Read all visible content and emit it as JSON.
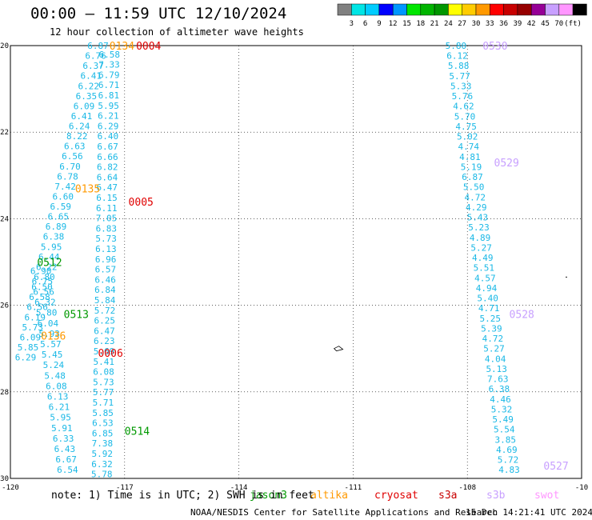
{
  "header": {
    "title": "00:00 – 11:59 UTC 12/10/2024",
    "subtitle": "12 hour collection of altimeter wave heights"
  },
  "colorbar": {
    "colors": [
      "#808080",
      "#00e5e5",
      "#00ccff",
      "#0000ff",
      "#0096ff",
      "#00e600",
      "#00b400",
      "#009600",
      "#ffff00",
      "#ffcc00",
      "#ff9900",
      "#ff0000",
      "#c80000",
      "#960000",
      "#960096",
      "#c8a0ff",
      "#ff96ff",
      "#000000"
    ],
    "labels": [
      "3",
      "6",
      "9",
      "12",
      "15",
      "18",
      "21",
      "24",
      "27",
      "30",
      "33",
      "36",
      "39",
      "42",
      "45",
      "70"
    ],
    "unit": "(ft)"
  },
  "map": {
    "lon_ticks": [
      "-120",
      "-117",
      "-114",
      "-111",
      "-108",
      "-10"
    ],
    "lat_ticks": [
      "-20",
      "-22",
      "-24",
      "-26",
      "-28",
      "-30"
    ],
    "lon_range": [
      -120,
      -105
    ],
    "lat_range": [
      -30,
      -20
    ],
    "grid": true
  },
  "swh_color": "#1ab8e6",
  "passes": [
    {
      "id": "0004",
      "color": "#e00000",
      "lon": -116.7,
      "lat": -20.0
    },
    {
      "id": "0134",
      "color": "#ff9900",
      "lon": -117.4,
      "lat": -20.0
    },
    {
      "id": "0135",
      "color": "#ff9900",
      "lon": -118.3,
      "lat": -23.3
    },
    {
      "id": "0005",
      "color": "#e00000",
      "lon": -116.9,
      "lat": -23.6
    },
    {
      "id": "0512",
      "color": "#009900",
      "lon": -119.3,
      "lat": -25.0
    },
    {
      "id": "0513",
      "color": "#009900",
      "lon": -118.6,
      "lat": -26.2
    },
    {
      "id": "0136",
      "color": "#ff9900",
      "lon": -119.2,
      "lat": -26.7
    },
    {
      "id": "0006",
      "color": "#e00000",
      "lon": -117.7,
      "lat": -27.1
    },
    {
      "id": "0514",
      "color": "#009900",
      "lon": -117.0,
      "lat": -28.9
    },
    {
      "id": "0530",
      "color": "#c8a0ff",
      "lon": -107.6,
      "lat": -20.0
    },
    {
      "id": "0529",
      "color": "#c8a0ff",
      "lon": -107.3,
      "lat": -22.7
    },
    {
      "id": "0528",
      "color": "#c8a0ff",
      "lon": -106.9,
      "lat": -26.2
    },
    {
      "id": "0527",
      "color": "#c8a0ff",
      "lon": -106.0,
      "lat": -29.7
    }
  ],
  "tracks": [
    {
      "values": [
        "6.87",
        "6.76",
        "6.37",
        "6.41",
        "6.22",
        "6.35",
        "6.09",
        "6.41",
        "6.24",
        "8.22",
        "6.63",
        "6.56",
        "6.70",
        "6.78",
        "7.42",
        "6.60",
        "6.59",
        "6.65",
        "6.89",
        "6.38",
        "5.95",
        "6.44",
        "6.22",
        "6.80",
        "6.50",
        "6.58",
        "6.56",
        "6.19",
        "5.73",
        "6.09",
        "5.85",
        "6.29"
      ],
      "lon_start": -117.7,
      "lon_end": -119.6,
      "lat_start": -20.0,
      "lat_end": -27.2
    },
    {
      "values": [
        "6.58",
        "7.33",
        "6.79",
        "6.71",
        "6.81",
        "5.95",
        "6.21",
        "6.29",
        "6.40",
        "6.67",
        "6.66",
        "6.82",
        "6.64",
        "6.47",
        "6.15",
        "6.11",
        "7.05",
        "6.83",
        "5.73",
        "6.13",
        "6.96",
        "6.57",
        "6.46",
        "6.84",
        "5.84",
        "5.72",
        "6.25",
        "6.47",
        "6.23",
        "5.69",
        "5.41",
        "6.08",
        "5.73",
        "5.77",
        "5.71",
        "5.85",
        "6.53",
        "6.85",
        "7.38",
        "5.92",
        "6.32",
        "5.78"
      ],
      "lon_start": -117.4,
      "lon_end": -117.6,
      "lat_start": -20.2,
      "lat_end": -29.9
    },
    {
      "values": [
        "6.90",
        "6.75",
        "6.56",
        "6.32",
        "5.80",
        "6.04",
        "5.93",
        "5.57",
        "5.45",
        "5.24",
        "5.48",
        "6.08",
        "6.13",
        "6.21",
        "5.95",
        "5.91",
        "6.33",
        "6.43",
        "6.67",
        "6.54"
      ],
      "lon_start": -119.2,
      "lon_end": -118.5,
      "lat_start": -25.2,
      "lat_end": -29.8
    },
    {
      "values": [
        "5.80",
        "6.12",
        "5.88",
        "5.77",
        "5.33",
        "5.76",
        "4.62",
        "5.70",
        "4.75",
        "5.02",
        "4.74",
        "4.81",
        "5.19",
        "6.87",
        "5.50",
        "4.72",
        "4.29",
        "5.43",
        "5.23",
        "4.89",
        "5.27",
        "4.49",
        "5.51",
        "4.57",
        "4.94",
        "5.40",
        "4.71",
        "5.25",
        "5.39",
        "4.72",
        "5.27",
        "4.04",
        "5.13",
        "7.63",
        "6.38",
        "4.46",
        "5.32",
        "5.49",
        "5.54",
        "3.85",
        "4.69",
        "5.72",
        "4.83"
      ],
      "lon_start": -108.3,
      "lon_end": -106.9,
      "lat_start": -20.0,
      "lat_end": -29.8
    }
  ],
  "footer": {
    "note": "note: 1) Time is in UTC; 2) SWH is in feet",
    "credit": "NOAA/NESDIS Center for Satellite Applications and Research",
    "timestamp": "15 Dec 14:21:41 UTC 2024",
    "legend": [
      {
        "label": "jason3",
        "color": "#009900"
      },
      {
        "label": "altika",
        "color": "#ff9900"
      },
      {
        "label": "cryosat",
        "color": "#e00000"
      },
      {
        "label": "s3a",
        "color": "#c80000"
      },
      {
        "label": "s3b",
        "color": "#c8a0ff"
      },
      {
        "label": "swot",
        "color": "#ff96ff"
      }
    ]
  }
}
